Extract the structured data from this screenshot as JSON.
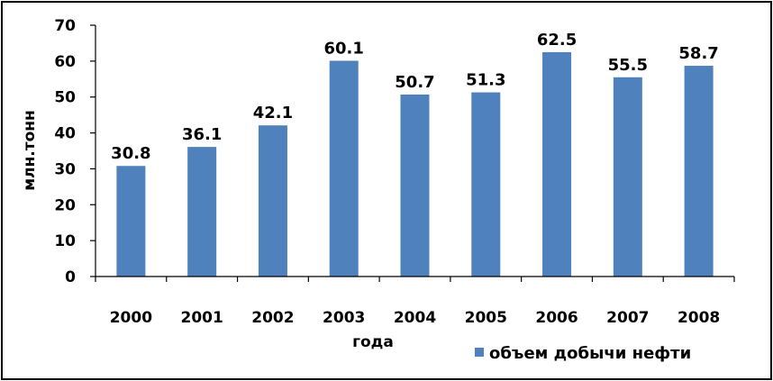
{
  "chart_data": {
    "type": "bar",
    "categories": [
      "2000",
      "2001",
      "2002",
      "2003",
      "2004",
      "2005",
      "2006",
      "2007",
      "2008"
    ],
    "series": [
      {
        "name": "объем добычи нефти",
        "values": [
          30.8,
          36.1,
          42.1,
          60.1,
          50.7,
          51.3,
          62.5,
          55.5,
          58.7
        ],
        "color": "#4f81bd"
      }
    ],
    "xlabel": "года",
    "ylabel": "млн.тонн",
    "ylim": [
      0,
      70
    ],
    "yticks": [
      0,
      10,
      20,
      30,
      40,
      50,
      60,
      70
    ],
    "grid": false,
    "data_labels": true,
    "legend_position": "bottom-right"
  }
}
